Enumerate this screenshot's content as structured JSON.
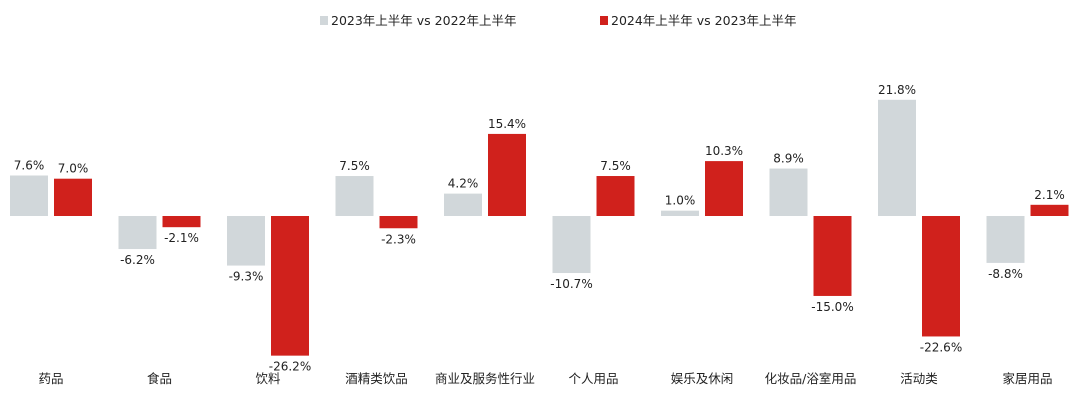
{
  "colors": {
    "series1": "#d1d7da",
    "series2": "#d0211c",
    "text": "#222222",
    "background": "#ffffff"
  },
  "chart_data": {
    "type": "bar",
    "title": "",
    "xlabel": "",
    "ylabel": "",
    "grid": false,
    "legend_position": "top-center",
    "ylim": [
      -26.2,
      21.8
    ],
    "categories": [
      "药品",
      "食品",
      "饮料",
      "酒精类饮品",
      "商业及服务性行业",
      "个人用品",
      "娱乐及休闲",
      "化妆品/浴室用品",
      "活动类",
      "家居用品"
    ],
    "series": [
      {
        "name": "2023年上半年 vs 2022年上半年",
        "values": [
          7.6,
          -6.2,
          -9.3,
          7.5,
          4.2,
          -10.7,
          1.0,
          8.9,
          21.8,
          -8.8
        ],
        "labels": [
          "7.6%",
          "-6.2%",
          "-9.3%",
          "7.5%",
          "4.2%",
          "-10.7%",
          "1.0%",
          "8.9%",
          "21.8%",
          "-8.8%"
        ]
      },
      {
        "name": "2024年上半年 vs 2023年上半年",
        "values": [
          7.0,
          -2.1,
          -26.2,
          -2.3,
          15.4,
          7.5,
          10.3,
          -15.0,
          -22.6,
          2.1
        ],
        "labels": [
          "7.0%",
          "-2.1%",
          "-26.2%",
          "-2.3%",
          "15.4%",
          "7.5%",
          "10.3%",
          "-15.0%",
          "-22.6%",
          "2.1%"
        ]
      }
    ]
  }
}
